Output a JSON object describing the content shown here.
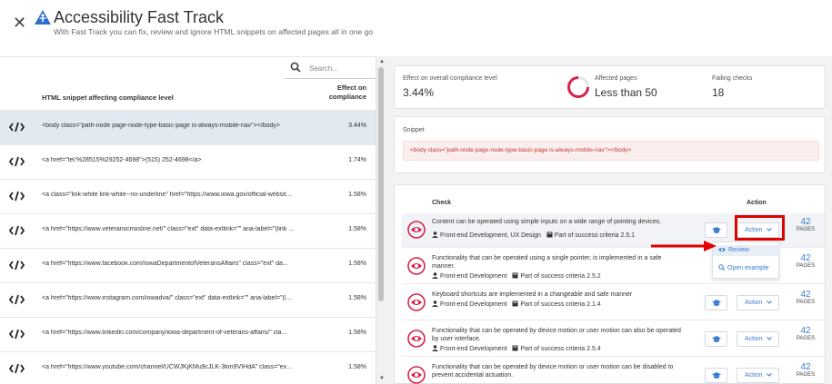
{
  "header": {
    "close_icon": "close-icon",
    "logo_icon": "accessibility-logo-icon",
    "title": "Accessibility Fast Track",
    "subtitle": "With Fast Track you can fix, review and ignore HTML snippets on affected pages all in one go"
  },
  "left": {
    "search_placeholder": "Search...",
    "col_snippet": "HTML snippet affecting compliance level",
    "col_effect_1": "Effect on",
    "col_effect_2": "compliance",
    "rows": [
      {
        "snippet": "<body class=\"path-node page-node-type-basic-page is-always-mobile-nav\"></body>",
        "effect": "3.44%",
        "selected": true
      },
      {
        "snippet": "<a href=\"tel:%28515%29252-4698\">(515) 252-4698</a>",
        "effect": "1.74%"
      },
      {
        "snippet": "<a class=\"link-white link-white--no-underline\" href=\"https://www.iowa.gov/official-websit...",
        "effect": "1.58%"
      },
      {
        "snippet": "<a href=\"https://www.veteranscrisisline.net/\" class=\"ext\" data-extlink=\"\" aria-label=\"(link ...",
        "effect": "1.58%"
      },
      {
        "snippet": "<a href=\"https://www.facebook.com/IowaDepartmentofVeteransAffairs\" class=\"ext\" da...",
        "effect": "1.58%"
      },
      {
        "snippet": "<a href=\"https://www.instagram.com/iowadva/\" class=\"ext\" data-extlink=\"\" aria-label=\"(l...",
        "effect": "1.58%"
      },
      {
        "snippet": "<a href=\"https://www.linkedin.com/company/iowa-department-of-veterans-affairs/\" cla...",
        "effect": "1.58%"
      },
      {
        "snippet": "<a href=\"https://www.youtube.com/channel/UCWJKjKMu9cJLK-3km9VIHdA\" class=\"ex...",
        "effect": "1.58%"
      }
    ]
  },
  "stats": {
    "effect_label": "Effect on overall compliance level",
    "effect_value": "3.44%",
    "affected_label": "Affected pages",
    "affected_value": "Less than 50",
    "failing_label": "Failing checks",
    "failing_value": "18"
  },
  "snippet": {
    "label": "Snippet",
    "code": "<body class=\"path-node page-node-type-basic-page is-always-mobile-nav\"></body>"
  },
  "checks": {
    "col_check": "Check",
    "col_action": "Action",
    "action_label": "Action",
    "pages_label": "PAGES",
    "rows": [
      {
        "title": "Content can be operated using simple inputs on a wide range of pointing devices.",
        "team": "Front-end Development, UX Design",
        "criteria": "Part of success criteria 2.5.1",
        "pages": "42"
      },
      {
        "title": "Functionality that can be operated using a single pointer, is implemented in a safe manner.",
        "team": "Front-end Development",
        "criteria": "Part of success criteria 2.5.2",
        "pages": "42"
      },
      {
        "title": "Keyboard shortcuts are implemented in a changeable and safe manner",
        "team": "Front-end Development",
        "criteria": "Part of success criteria 2.1.4",
        "pages": "42"
      },
      {
        "title": "Functionality that can be operated by device motion or user motion can also be operated by user interface.",
        "team": "Front-end Development",
        "criteria": "Part of success criteria 2.5.4",
        "pages": "42"
      },
      {
        "title": "Functionality that can be operated by device motion or user motion can be disabled to prevent accidental actuation.",
        "team": "",
        "criteria": "",
        "pages": "42"
      }
    ],
    "dropdown": {
      "review": "Review",
      "open_example": "Open example"
    }
  },
  "colors": {
    "accent": "#3a7bd5",
    "error": "#d6234a",
    "highlight": "#e00000"
  }
}
